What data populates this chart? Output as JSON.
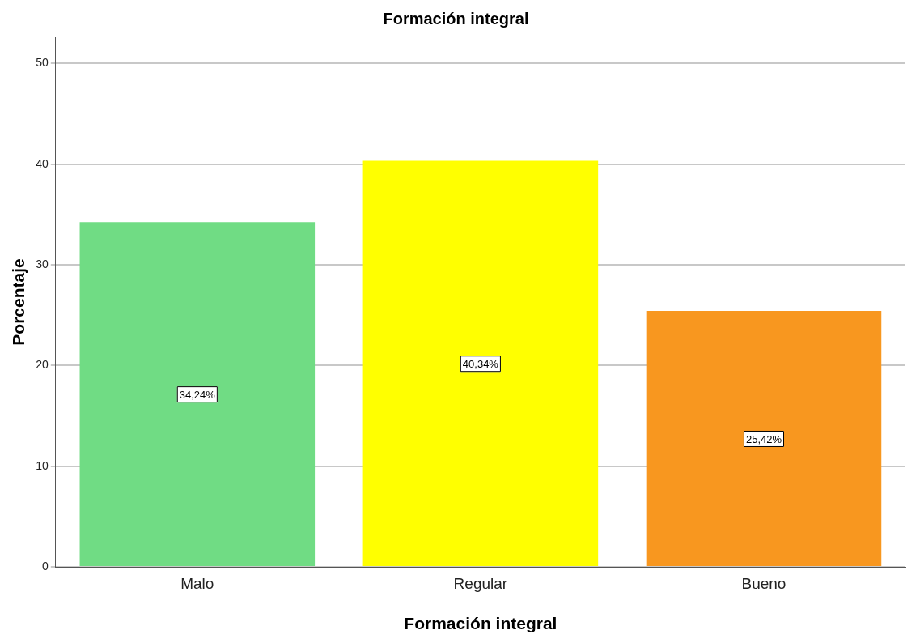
{
  "chart_data": {
    "type": "bar",
    "title": "Formación integral",
    "xlabel": "Formación integral",
    "ylabel": "Porcentaje",
    "categories": [
      "Malo",
      "Regular",
      "Bueno"
    ],
    "values": [
      34.24,
      40.34,
      25.42
    ],
    "colors": [
      "#70dc84",
      "#ffff00",
      "#f8971f"
    ],
    "value_labels": [
      "34,24%",
      "40,34%",
      "25,42%"
    ],
    "ylim": [
      0,
      52.6
    ],
    "yticks": [
      0,
      10,
      20,
      30,
      40,
      50
    ],
    "grid": "y",
    "legend": false
  }
}
